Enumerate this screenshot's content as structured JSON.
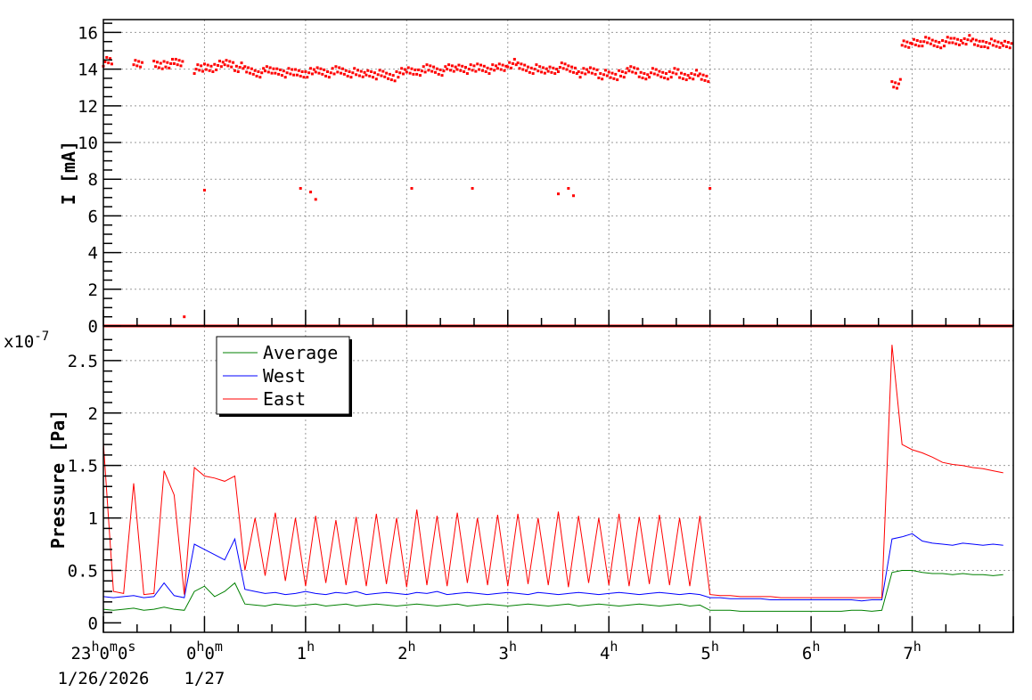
{
  "chart_data": [
    {
      "type": "scatter",
      "ylabel": "I [mA]",
      "ylim": [
        0,
        16.7
      ],
      "xlim": [
        "23:00",
        "08:00"
      ],
      "grid": true,
      "y_ticks": [
        "0",
        "2",
        "4",
        "6",
        "8",
        "10",
        "12",
        "14",
        "16"
      ],
      "x": [
        "23:00",
        "23:06",
        "23:12",
        "23:18",
        "23:24",
        "23:30",
        "23:36",
        "23:42",
        "23:48",
        "23:54",
        "00:00",
        "00:06",
        "00:12",
        "00:18",
        "00:24",
        "00:30",
        "00:36",
        "00:42",
        "00:48",
        "00:54",
        "01:00",
        "01:06",
        "01:12",
        "01:18",
        "01:24",
        "01:30",
        "01:36",
        "01:42",
        "01:48",
        "01:54",
        "02:00",
        "02:06",
        "02:12",
        "02:18",
        "02:24",
        "02:30",
        "02:36",
        "02:42",
        "02:48",
        "02:54",
        "03:00",
        "03:06",
        "03:12",
        "03:18",
        "03:24",
        "03:30",
        "03:36",
        "03:42",
        "03:48",
        "03:54",
        "04:00",
        "04:06",
        "04:12",
        "04:18",
        "04:24",
        "04:30",
        "04:36",
        "04:42",
        "04:48",
        "04:54",
        "05:00",
        "05:06",
        "05:12",
        "05:18",
        "05:24",
        "05:30",
        "05:36",
        "05:42",
        "05:48",
        "05:54",
        "06:00",
        "06:06",
        "06:12",
        "06:18",
        "06:24",
        "06:30",
        "06:36",
        "06:42",
        "06:48",
        "06:54",
        "07:00",
        "07:06",
        "07:12",
        "07:18",
        "07:24",
        "07:30",
        "07:36",
        "07:42",
        "07:48",
        "07:54"
      ],
      "series": [
        {
          "color": "#ff0000",
          "values": [
            14.4,
            null,
            null,
            14.3,
            null,
            14.2,
            14.3,
            14.3,
            null,
            14.0,
            14.1,
            14.2,
            14.3,
            14.1,
            13.9,
            13.8,
            13.9,
            13.9,
            13.8,
            13.8,
            13.8,
            13.9,
            13.8,
            13.9,
            13.8,
            13.7,
            13.8,
            13.7,
            13.6,
            13.8,
            13.9,
            13.9,
            14.0,
            13.9,
            14.0,
            14.1,
            14.0,
            14.1,
            14.0,
            14.1,
            14.3,
            14.1,
            14.0,
            13.9,
            14.0,
            14.1,
            14.0,
            13.8,
            13.9,
            13.7,
            13.6,
            13.8,
            13.9,
            13.7,
            13.8,
            13.7,
            13.8,
            13.6,
            13.7,
            13.5,
            null,
            null,
            null,
            null,
            null,
            null,
            null,
            null,
            null,
            null,
            null,
            null,
            null,
            null,
            null,
            null,
            null,
            null,
            13.2,
            15.3,
            15.5,
            15.5,
            15.4,
            15.5,
            15.5,
            15.6,
            15.4,
            15.4,
            15.3,
            15.4
          ]
        }
      ],
      "outliers": [
        [
          "00:00",
          7.4
        ],
        [
          "00:57",
          7.5
        ],
        [
          "01:03",
          7.3
        ],
        [
          "01:06",
          6.9
        ],
        [
          "02:03",
          7.5
        ],
        [
          "02:39",
          7.5
        ],
        [
          "03:30",
          7.2
        ],
        [
          "03:36",
          7.5
        ],
        [
          "03:39",
          7.1
        ],
        [
          "05:00",
          7.5
        ],
        [
          "23:48",
          0.5
        ]
      ],
      "zero_line": 0
    },
    {
      "type": "line",
      "ylabel": "Pressure [Pa]",
      "y_exponent": "x10",
      "y_exponent_power": "-7",
      "ylim": [
        -0.09,
        2.83
      ],
      "grid": true,
      "legend_position": "top-left",
      "y_ticks": [
        "0",
        "0.5",
        "1",
        "1.5",
        "2",
        "2.5"
      ],
      "x_tick_labels": [
        {
          "main": "23",
          "h": "h",
          "m_val": "0",
          "m": "m",
          "s_val": "0",
          "s": "s",
          "date": "1/26/2026"
        },
        {
          "main": "0",
          "h": "h",
          "m_val": "0",
          "m": "m",
          "date": "1/27"
        },
        {
          "main": "1",
          "h": "h"
        },
        {
          "main": "2",
          "h": "h"
        },
        {
          "main": "3",
          "h": "h"
        },
        {
          "main": "4",
          "h": "h"
        },
        {
          "main": "5",
          "h": "h"
        },
        {
          "main": "6",
          "h": "h"
        },
        {
          "main": "7",
          "h": "h"
        }
      ],
      "series": [
        {
          "name": "Average",
          "color": "#008000",
          "values": [
            0.13,
            0.12,
            0.13,
            0.14,
            0.12,
            0.13,
            0.15,
            0.13,
            0.12,
            0.3,
            0.35,
            0.25,
            0.3,
            0.38,
            0.18,
            0.17,
            0.16,
            0.18,
            0.17,
            0.16,
            0.17,
            0.18,
            0.16,
            0.17,
            0.18,
            0.16,
            0.17,
            0.18,
            0.17,
            0.16,
            0.17,
            0.18,
            0.17,
            0.16,
            0.17,
            0.18,
            0.16,
            0.17,
            0.18,
            0.17,
            0.16,
            0.17,
            0.18,
            0.17,
            0.16,
            0.17,
            0.18,
            0.16,
            0.17,
            0.18,
            0.17,
            0.16,
            0.17,
            0.18,
            0.17,
            0.16,
            0.17,
            0.18,
            0.16,
            0.17,
            0.12,
            0.12,
            0.12,
            0.11,
            0.11,
            0.11,
            0.11,
            0.11,
            0.11,
            0.11,
            0.11,
            0.11,
            0.11,
            0.11,
            0.12,
            0.12,
            0.11,
            0.12,
            0.48,
            0.5,
            0.5,
            0.48,
            0.47,
            0.47,
            0.46,
            0.47,
            0.46,
            0.46,
            0.45,
            0.46
          ]
        },
        {
          "name": "West",
          "color": "#0000ff",
          "values": [
            0.25,
            0.24,
            0.25,
            0.26,
            0.24,
            0.25,
            0.38,
            0.26,
            0.24,
            0.75,
            0.7,
            0.65,
            0.6,
            0.8,
            0.32,
            0.3,
            0.28,
            0.29,
            0.27,
            0.28,
            0.3,
            0.28,
            0.27,
            0.29,
            0.28,
            0.3,
            0.27,
            0.28,
            0.29,
            0.28,
            0.27,
            0.29,
            0.28,
            0.3,
            0.27,
            0.28,
            0.29,
            0.28,
            0.27,
            0.28,
            0.29,
            0.28,
            0.27,
            0.29,
            0.28,
            0.27,
            0.28,
            0.29,
            0.28,
            0.27,
            0.28,
            0.29,
            0.28,
            0.27,
            0.28,
            0.29,
            0.28,
            0.27,
            0.28,
            0.27,
            0.24,
            0.24,
            0.23,
            0.23,
            0.23,
            0.23,
            0.22,
            0.22,
            0.22,
            0.22,
            0.22,
            0.22,
            0.22,
            0.22,
            0.22,
            0.21,
            0.22,
            0.22,
            0.8,
            0.82,
            0.85,
            0.78,
            0.76,
            0.75,
            0.74,
            0.76,
            0.75,
            0.74,
            0.75,
            0.74
          ]
        },
        {
          "name": "East",
          "color": "#ff0000",
          "values": [
            1.72,
            0.3,
            0.28,
            1.33,
            0.27,
            0.28,
            1.45,
            1.22,
            0.27,
            1.48,
            1.4,
            1.38,
            1.35,
            1.4,
            0.5,
            1.0,
            0.45,
            1.05,
            0.4,
            1.0,
            0.35,
            1.02,
            0.38,
            0.98,
            0.36,
            1.01,
            0.35,
            1.04,
            0.37,
            1.0,
            0.34,
            1.08,
            0.36,
            1.02,
            0.35,
            1.05,
            0.38,
            1.0,
            0.36,
            1.03,
            0.35,
            1.04,
            0.37,
            1.0,
            0.36,
            1.06,
            0.34,
            1.02,
            0.38,
            1.0,
            0.36,
            1.04,
            0.35,
            1.01,
            0.37,
            1.03,
            0.36,
            1.0,
            0.35,
            1.02,
            0.27,
            0.26,
            0.26,
            0.25,
            0.25,
            0.25,
            0.25,
            0.24,
            0.24,
            0.24,
            0.24,
            0.24,
            0.24,
            0.24,
            0.24,
            0.24,
            0.24,
            0.24,
            2.65,
            1.7,
            1.65,
            1.62,
            1.58,
            1.53,
            1.51,
            1.5,
            1.48,
            1.47,
            1.45,
            1.43
          ]
        }
      ]
    }
  ]
}
